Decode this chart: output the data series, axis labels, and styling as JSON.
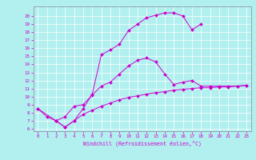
{
  "xlabel": "Windchill (Refroidissement éolien,°C)",
  "bg_color": "#b2f0f0",
  "line_color": "#cc00cc",
  "grid_color": "#ffffff",
  "xmin": -0.5,
  "xmax": 23.5,
  "ymin": 5.7,
  "ymax": 21.2,
  "yticks": [
    6,
    7,
    8,
    9,
    10,
    11,
    12,
    13,
    14,
    15,
    16,
    17,
    18,
    19,
    20
  ],
  "xticks": [
    0,
    1,
    2,
    3,
    4,
    5,
    6,
    7,
    8,
    9,
    10,
    11,
    12,
    13,
    14,
    15,
    16,
    17,
    18,
    19,
    20,
    21,
    22,
    23
  ],
  "line1_x": [
    0,
    1,
    2,
    3,
    4,
    5,
    6,
    7,
    8,
    9,
    10,
    11,
    12,
    13,
    14,
    15,
    16,
    17,
    18
  ],
  "line1_y": [
    8.5,
    7.5,
    7.0,
    6.2,
    7.0,
    8.5,
    10.3,
    15.2,
    15.8,
    16.5,
    18.2,
    19.0,
    19.8,
    20.1,
    20.4,
    20.4,
    20.0,
    18.3,
    19.0
  ],
  "line2_x": [
    0,
    2,
    3,
    4,
    5,
    6,
    7,
    8,
    9,
    10,
    11,
    12,
    13,
    14,
    15,
    16,
    17,
    18,
    19,
    20,
    21,
    22,
    23
  ],
  "line2_y": [
    8.5,
    7.0,
    7.5,
    8.8,
    9.0,
    10.2,
    11.3,
    11.8,
    12.8,
    13.8,
    14.5,
    14.8,
    14.3,
    12.8,
    11.5,
    11.8,
    12.0,
    11.3,
    11.3,
    11.3,
    11.3,
    11.3,
    11.4
  ],
  "line3_x": [
    2,
    3,
    4,
    5,
    6,
    7,
    8,
    9,
    10,
    11,
    12,
    13,
    14,
    15,
    16,
    17,
    18,
    19,
    20,
    21,
    22,
    23
  ],
  "line3_y": [
    7.0,
    6.2,
    7.0,
    7.8,
    8.3,
    8.8,
    9.2,
    9.6,
    9.9,
    10.1,
    10.3,
    10.5,
    10.6,
    10.8,
    10.9,
    11.0,
    11.1,
    11.1,
    11.2,
    11.2,
    11.3,
    11.4
  ]
}
